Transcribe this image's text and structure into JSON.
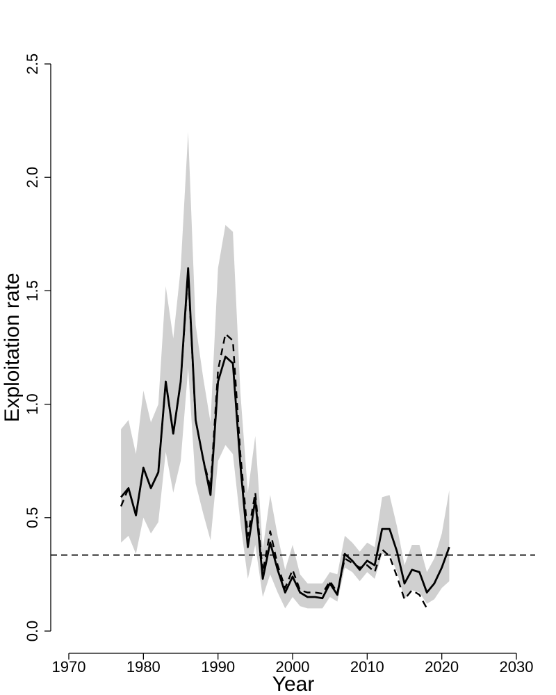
{
  "chart_data": {
    "type": "line",
    "title": "",
    "xlabel": "Year",
    "ylabel": "Exploitation rate",
    "xlim": [
      1970,
      2030
    ],
    "ylim": [
      0,
      2.5
    ],
    "x_ticks": [
      1970,
      1980,
      1990,
      2000,
      2010,
      2020,
      2030
    ],
    "y_ticks": [
      "0.0",
      "0.5",
      "1.0",
      "1.5",
      "2.0",
      "2.5"
    ],
    "grid": false,
    "legend": "none",
    "reference_line": {
      "y": 0.335,
      "style": "dashed"
    },
    "series": [
      {
        "style": "solid",
        "x": [
          1977,
          1978,
          1979,
          1980,
          1981,
          1982,
          1983,
          1984,
          1985,
          1986,
          1987,
          1988,
          1989,
          1990,
          1991,
          1992,
          1993,
          1994,
          1995,
          1996,
          1997,
          1998,
          1999,
          2000,
          2001,
          2002,
          2003,
          2004,
          2005,
          2006,
          2007,
          2008,
          2009,
          2010,
          2011,
          2012,
          2013,
          2014,
          2015,
          2016,
          2017,
          2018,
          2019,
          2020,
          2021
        ],
        "values": [
          0.59,
          0.63,
          0.51,
          0.72,
          0.63,
          0.7,
          1.1,
          0.87,
          1.1,
          1.6,
          0.93,
          0.76,
          0.6,
          1.1,
          1.21,
          1.18,
          0.73,
          0.37,
          0.58,
          0.23,
          0.39,
          0.27,
          0.17,
          0.24,
          0.17,
          0.15,
          0.15,
          0.145,
          0.21,
          0.16,
          0.34,
          0.31,
          0.27,
          0.31,
          0.29,
          0.45,
          0.45,
          0.35,
          0.21,
          0.27,
          0.26,
          0.17,
          0.21,
          0.28,
          0.37
        ]
      },
      {
        "style": "dashed",
        "x": [
          1977,
          1978,
          1979,
          1980,
          1981,
          1982,
          1983,
          1984,
          1985,
          1986,
          1987,
          1988,
          1989,
          1990,
          1991,
          1992,
          1993,
          1994,
          1995,
          1996,
          1997,
          1998,
          1999,
          2000,
          2001,
          2002,
          2003,
          2004,
          2005,
          2006,
          2007,
          2008,
          2009,
          2010,
          2011,
          2012,
          2013,
          2014,
          2015,
          2016,
          2017,
          2018
        ],
        "values": [
          0.55,
          0.63,
          0.51,
          0.72,
          0.63,
          0.7,
          1.1,
          0.87,
          1.1,
          1.58,
          0.93,
          0.76,
          0.63,
          1.15,
          1.31,
          1.28,
          0.78,
          0.42,
          0.61,
          0.26,
          0.44,
          0.29,
          0.19,
          0.27,
          0.18,
          0.17,
          0.17,
          0.165,
          0.22,
          0.17,
          0.32,
          0.3,
          0.28,
          0.29,
          0.26,
          0.36,
          0.33,
          0.24,
          0.14,
          0.18,
          0.16,
          0.1
        ]
      }
    ],
    "confidence_band": {
      "x": [
        1977,
        1978,
        1979,
        1980,
        1981,
        1982,
        1983,
        1984,
        1985,
        1986,
        1987,
        1988,
        1989,
        1990,
        1991,
        1992,
        1993,
        1994,
        1995,
        1996,
        1997,
        1998,
        1999,
        2000,
        2001,
        2002,
        2003,
        2004,
        2005,
        2006,
        2007,
        2008,
        2009,
        2010,
        2011,
        2012,
        2013,
        2014,
        2015,
        2016,
        2017,
        2018,
        2019,
        2020,
        2021
      ],
      "lower": [
        0.39,
        0.42,
        0.34,
        0.5,
        0.43,
        0.48,
        0.79,
        0.61,
        0.75,
        1.16,
        0.65,
        0.52,
        0.4,
        0.75,
        0.82,
        0.78,
        0.48,
        0.23,
        0.38,
        0.15,
        0.25,
        0.17,
        0.1,
        0.15,
        0.11,
        0.1,
        0.1,
        0.1,
        0.15,
        0.13,
        0.28,
        0.26,
        0.22,
        0.26,
        0.23,
        0.34,
        0.34,
        0.26,
        0.14,
        0.18,
        0.17,
        0.12,
        0.14,
        0.19,
        0.22
      ],
      "upper": [
        0.89,
        0.93,
        0.78,
        1.06,
        0.92,
        1.0,
        1.52,
        1.29,
        1.6,
        2.2,
        1.35,
        1.12,
        0.92,
        1.6,
        1.79,
        1.76,
        1.05,
        0.61,
        0.86,
        0.36,
        0.6,
        0.42,
        0.27,
        0.38,
        0.25,
        0.21,
        0.21,
        0.21,
        0.26,
        0.25,
        0.42,
        0.39,
        0.35,
        0.39,
        0.37,
        0.59,
        0.6,
        0.46,
        0.29,
        0.38,
        0.38,
        0.26,
        0.32,
        0.43,
        0.62
      ]
    }
  }
}
